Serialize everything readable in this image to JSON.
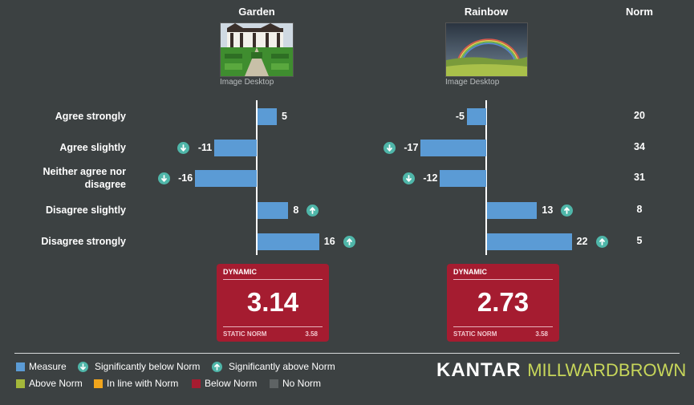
{
  "header": {
    "norm_label": "Norm"
  },
  "images": [
    {
      "title": "Garden",
      "caption": "Image Desktop"
    },
    {
      "title": "Rainbow",
      "caption": "Image Desktop"
    }
  ],
  "chart_data": {
    "type": "bar",
    "orientation": "horizontal",
    "categories": [
      "Agree strongly",
      "Agree slightly",
      "Neither agree nor disagree",
      "Disagree slightly",
      "Disagree strongly"
    ],
    "norm": [
      20,
      34,
      31,
      8,
      5
    ],
    "series": [
      {
        "name": "Garden",
        "values": [
          5,
          -11,
          -16,
          8,
          16
        ],
        "significance": [
          "none",
          "below",
          "below",
          "above",
          "above"
        ]
      },
      {
        "name": "Rainbow",
        "values": [
          -5,
          -17,
          -12,
          13,
          22
        ],
        "significance": [
          "none",
          "below",
          "below",
          "above",
          "above"
        ]
      }
    ]
  },
  "scores": [
    {
      "badge": "DYNAMIC",
      "value": "3.14",
      "static_norm_label": "STATIC NORM",
      "static_norm_value": "3.58",
      "status": "below_norm"
    },
    {
      "badge": "DYNAMIC",
      "value": "2.73",
      "static_norm_label": "STATIC NORM",
      "static_norm_value": "3.58",
      "status": "below_norm"
    }
  ],
  "legend": {
    "measure": {
      "label": "Measure",
      "color": "#5b9bd5"
    },
    "sig_below": {
      "label": "Significantly below Norm",
      "color": "#4fb6a9"
    },
    "sig_above": {
      "label": "Significantly above Norm",
      "color": "#4fb6a9"
    },
    "above_norm": {
      "label": "Above Norm",
      "color": "#a4b83a"
    },
    "inline_norm": {
      "label": "In line with Norm",
      "color": "#f1a51c"
    },
    "below_norm": {
      "label": "Below Norm",
      "color": "#a51c30"
    },
    "no_norm": {
      "label": "No Norm",
      "color": "#5e6364"
    }
  },
  "logo": {
    "part1": "KANTAR",
    "part2": "MILLWARDBROWN"
  }
}
